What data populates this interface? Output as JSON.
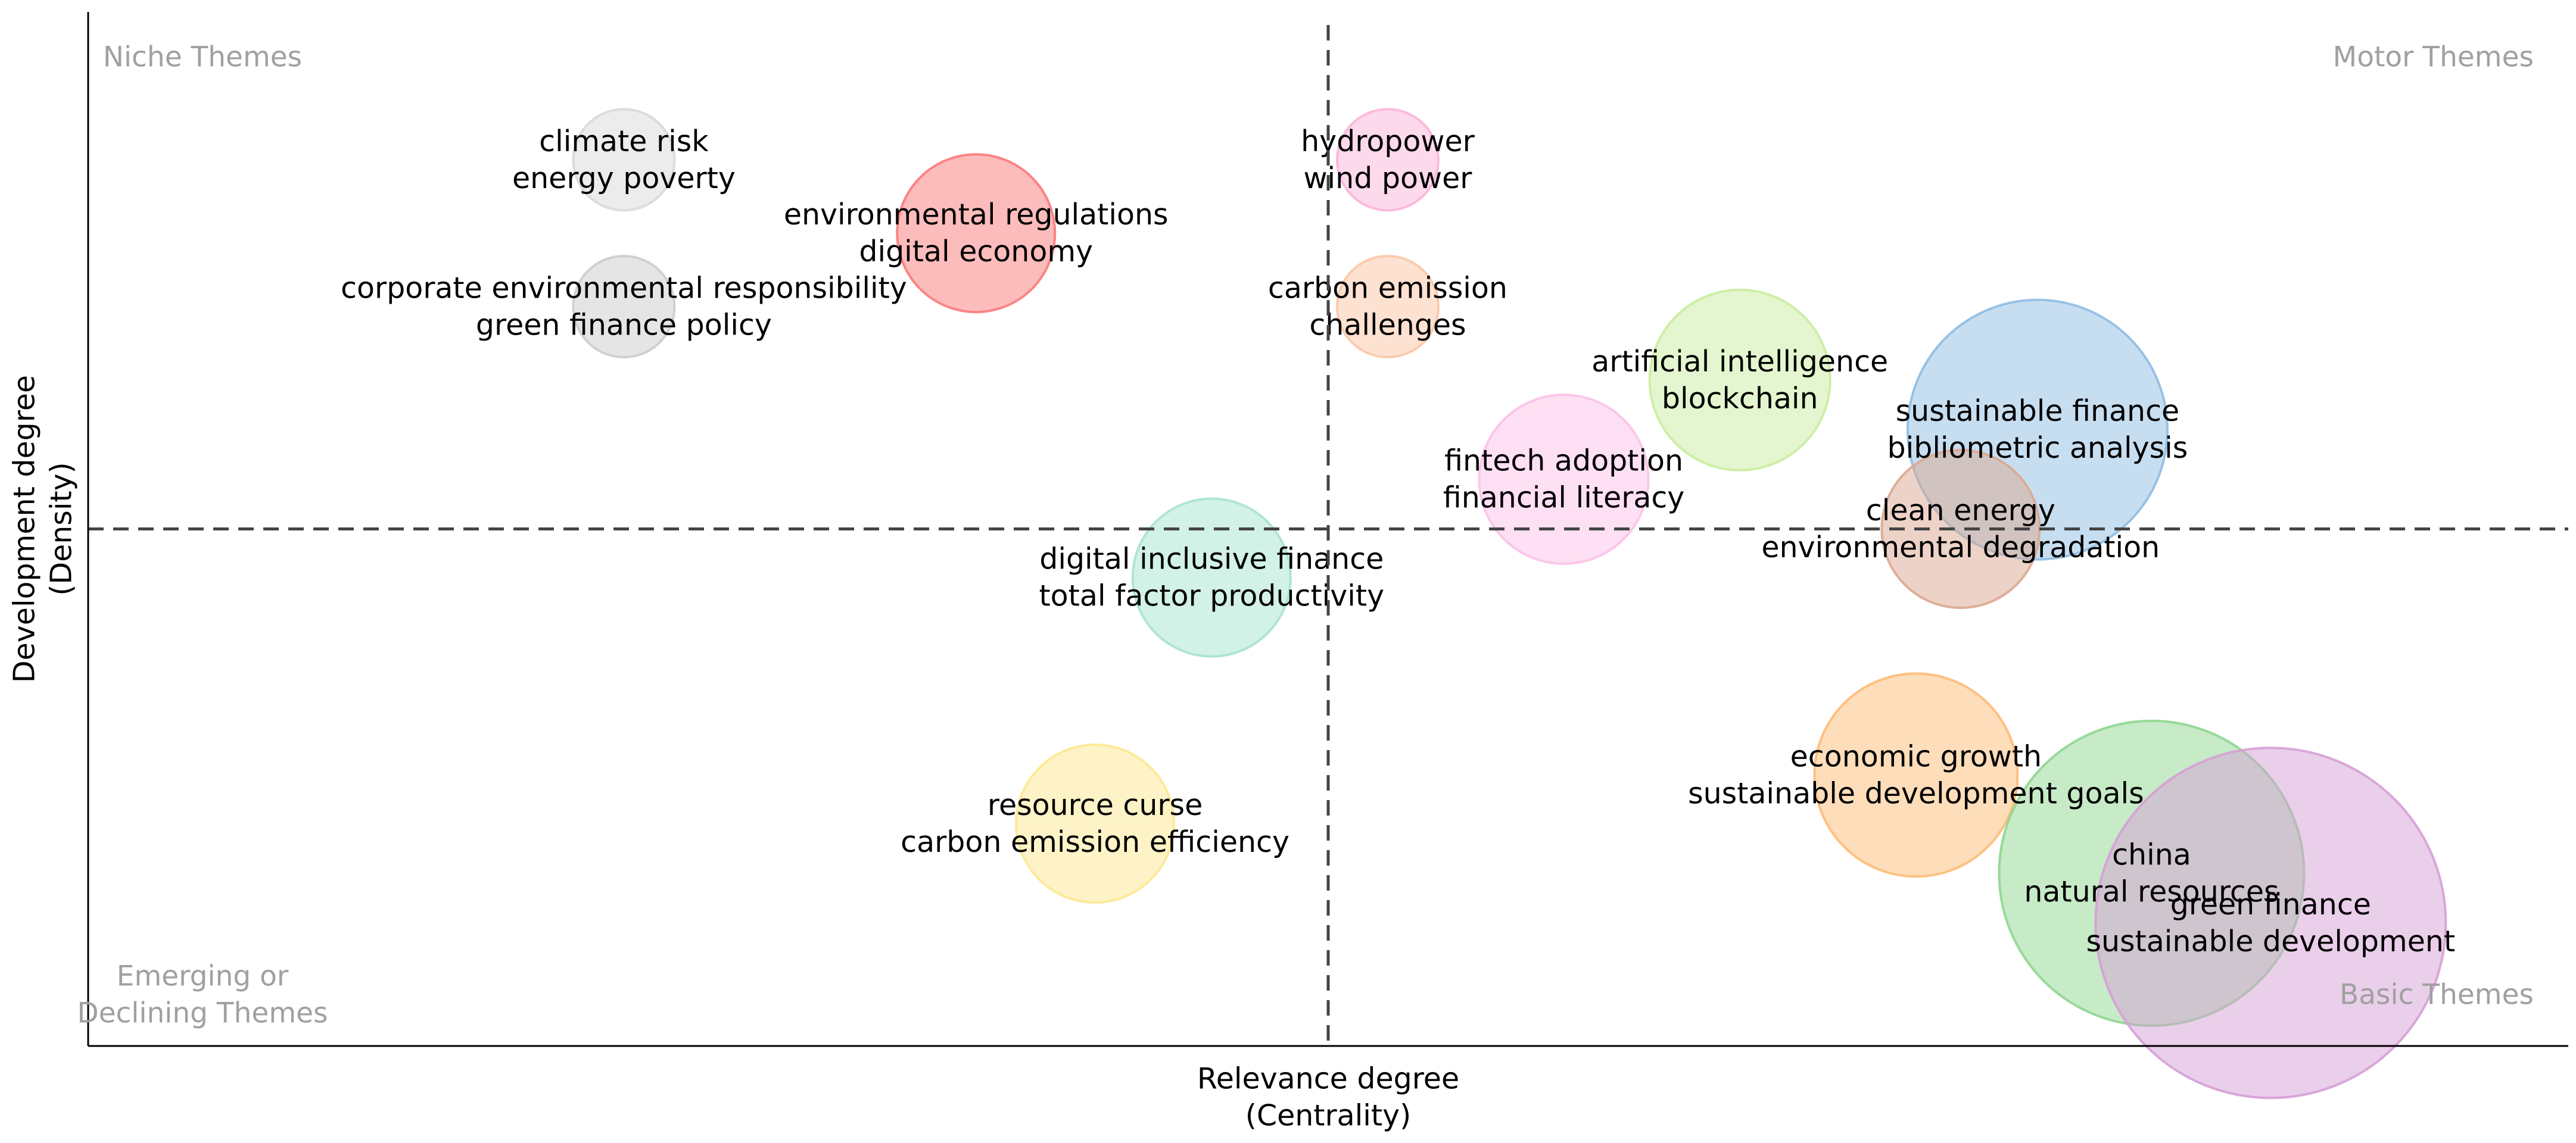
{
  "chart_data": {
    "type": "bubble",
    "title": "",
    "xlabel": [
      "Relevance degree",
      "(Centrality)"
    ],
    "ylabel": [
      "Development degree",
      "(Density)"
    ],
    "xlim": [
      0,
      1
    ],
    "ylim": [
      0,
      1
    ],
    "x_threshold": 0.5,
    "y_threshold": 0.5,
    "grid": false,
    "legend": "none",
    "quadrants": {
      "top_left": [
        "Niche Themes"
      ],
      "top_right": [
        "Motor Themes"
      ],
      "bottom_left": [
        "Emerging or",
        "Declining Themes"
      ],
      "bottom_right": [
        "Basic Themes"
      ]
    },
    "bubbles": [
      {
        "labels": [
          "climate risk",
          "energy poverty"
        ],
        "x": 0.216,
        "y": 0.857,
        "size": 0.1,
        "color": "#d9d9d9"
      },
      {
        "labels": [
          "hydropower",
          "wind power"
        ],
        "x": 0.524,
        "y": 0.857,
        "size": 0.1,
        "color": "#fbb4d9"
      },
      {
        "labels": [
          "environmental regulations",
          "digital economy"
        ],
        "x": 0.358,
        "y": 0.786,
        "size": 0.35,
        "color": "#fb7a7a"
      },
      {
        "labels": [
          "corporate environmental responsibility",
          "green finance policy"
        ],
        "x": 0.216,
        "y": 0.715,
        "size": 0.1,
        "color": "#cccccc"
      },
      {
        "labels": [
          "carbon emission",
          "challenges"
        ],
        "x": 0.524,
        "y": 0.715,
        "size": 0.1,
        "color": "#fbc6a5"
      },
      {
        "labels": [
          "artificial intelligence",
          "blockchain"
        ],
        "x": 0.666,
        "y": 0.644,
        "size": 0.45,
        "color": "#c9ed9f"
      },
      {
        "labels": [
          "sustainable finance",
          "bibliometric analysis"
        ],
        "x": 0.786,
        "y": 0.596,
        "size": 0.8,
        "color": "#8fbde3"
      },
      {
        "labels": [
          "fintech adoption",
          "financial literacy"
        ],
        "x": 0.595,
        "y": 0.548,
        "size": 0.4,
        "color": "#fbc2e8"
      },
      {
        "labels": [
          "clean energy",
          "environmental degradation"
        ],
        "x": 0.755,
        "y": 0.5,
        "size": 0.35,
        "color": "#dba78f"
      },
      {
        "labels": [
          "digital inclusive finance",
          "total factor productivity"
        ],
        "x": 0.453,
        "y": 0.453,
        "size": 0.35,
        "color": "#a6e3d0"
      },
      {
        "labels": [
          "economic growth",
          "sustainable development goals"
        ],
        "x": 0.737,
        "y": 0.262,
        "size": 0.55,
        "color": "#fdbb75"
      },
      {
        "labels": [
          "resource curse",
          "carbon emission efficiency"
        ],
        "x": 0.406,
        "y": 0.215,
        "size": 0.35,
        "color": "#fde88f"
      },
      {
        "labels": [
          "china",
          "natural resources"
        ],
        "x": 0.832,
        "y": 0.167,
        "size": 1.0,
        "color": "#8fd68f"
      },
      {
        "labels": [
          "green finance",
          "sustainable development"
        ],
        "x": 0.88,
        "y": 0.119,
        "size": 1.2,
        "color": "#d69fd6"
      }
    ]
  }
}
